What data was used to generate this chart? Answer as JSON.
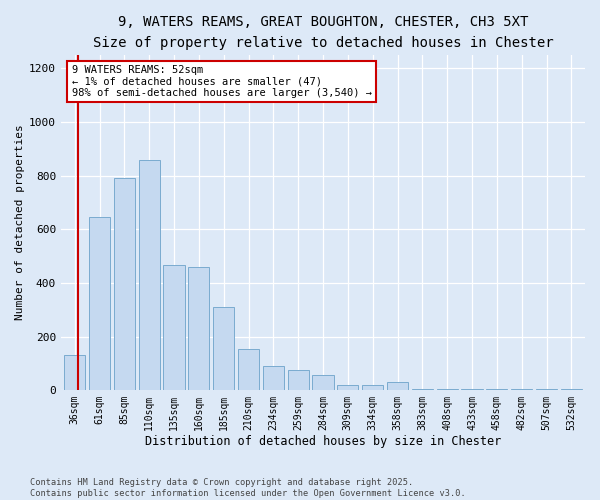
{
  "title1": "9, WATERS REAMS, GREAT BOUGHTON, CHESTER, CH3 5XT",
  "title2": "Size of property relative to detached houses in Chester",
  "xlabel": "Distribution of detached houses by size in Chester",
  "ylabel": "Number of detached properties",
  "categories": [
    "36sqm",
    "61sqm",
    "85sqm",
    "110sqm",
    "135sqm",
    "160sqm",
    "185sqm",
    "210sqm",
    "234sqm",
    "259sqm",
    "284sqm",
    "309sqm",
    "334sqm",
    "358sqm",
    "383sqm",
    "408sqm",
    "433sqm",
    "458sqm",
    "482sqm",
    "507sqm",
    "532sqm"
  ],
  "values": [
    130,
    645,
    790,
    860,
    465,
    460,
    310,
    155,
    90,
    75,
    55,
    20,
    20,
    30,
    5,
    5,
    5,
    5,
    5,
    5,
    5
  ],
  "bar_color": "#c5d9f0",
  "bar_edge_color": "#7aabcf",
  "annotation_text": "9 WATERS REAMS: 52sqm\n← 1% of detached houses are smaller (47)\n98% of semi-detached houses are larger (3,540) →",
  "annotation_box_facecolor": "#ffffff",
  "annotation_box_edgecolor": "#cc0000",
  "vline_color": "#cc0000",
  "ylim": [
    0,
    1250
  ],
  "yticks": [
    0,
    200,
    400,
    600,
    800,
    1000,
    1200
  ],
  "bg_color": "#dde9f7",
  "footer_text": "Contains HM Land Registry data © Crown copyright and database right 2025.\nContains public sector information licensed under the Open Government Licence v3.0."
}
